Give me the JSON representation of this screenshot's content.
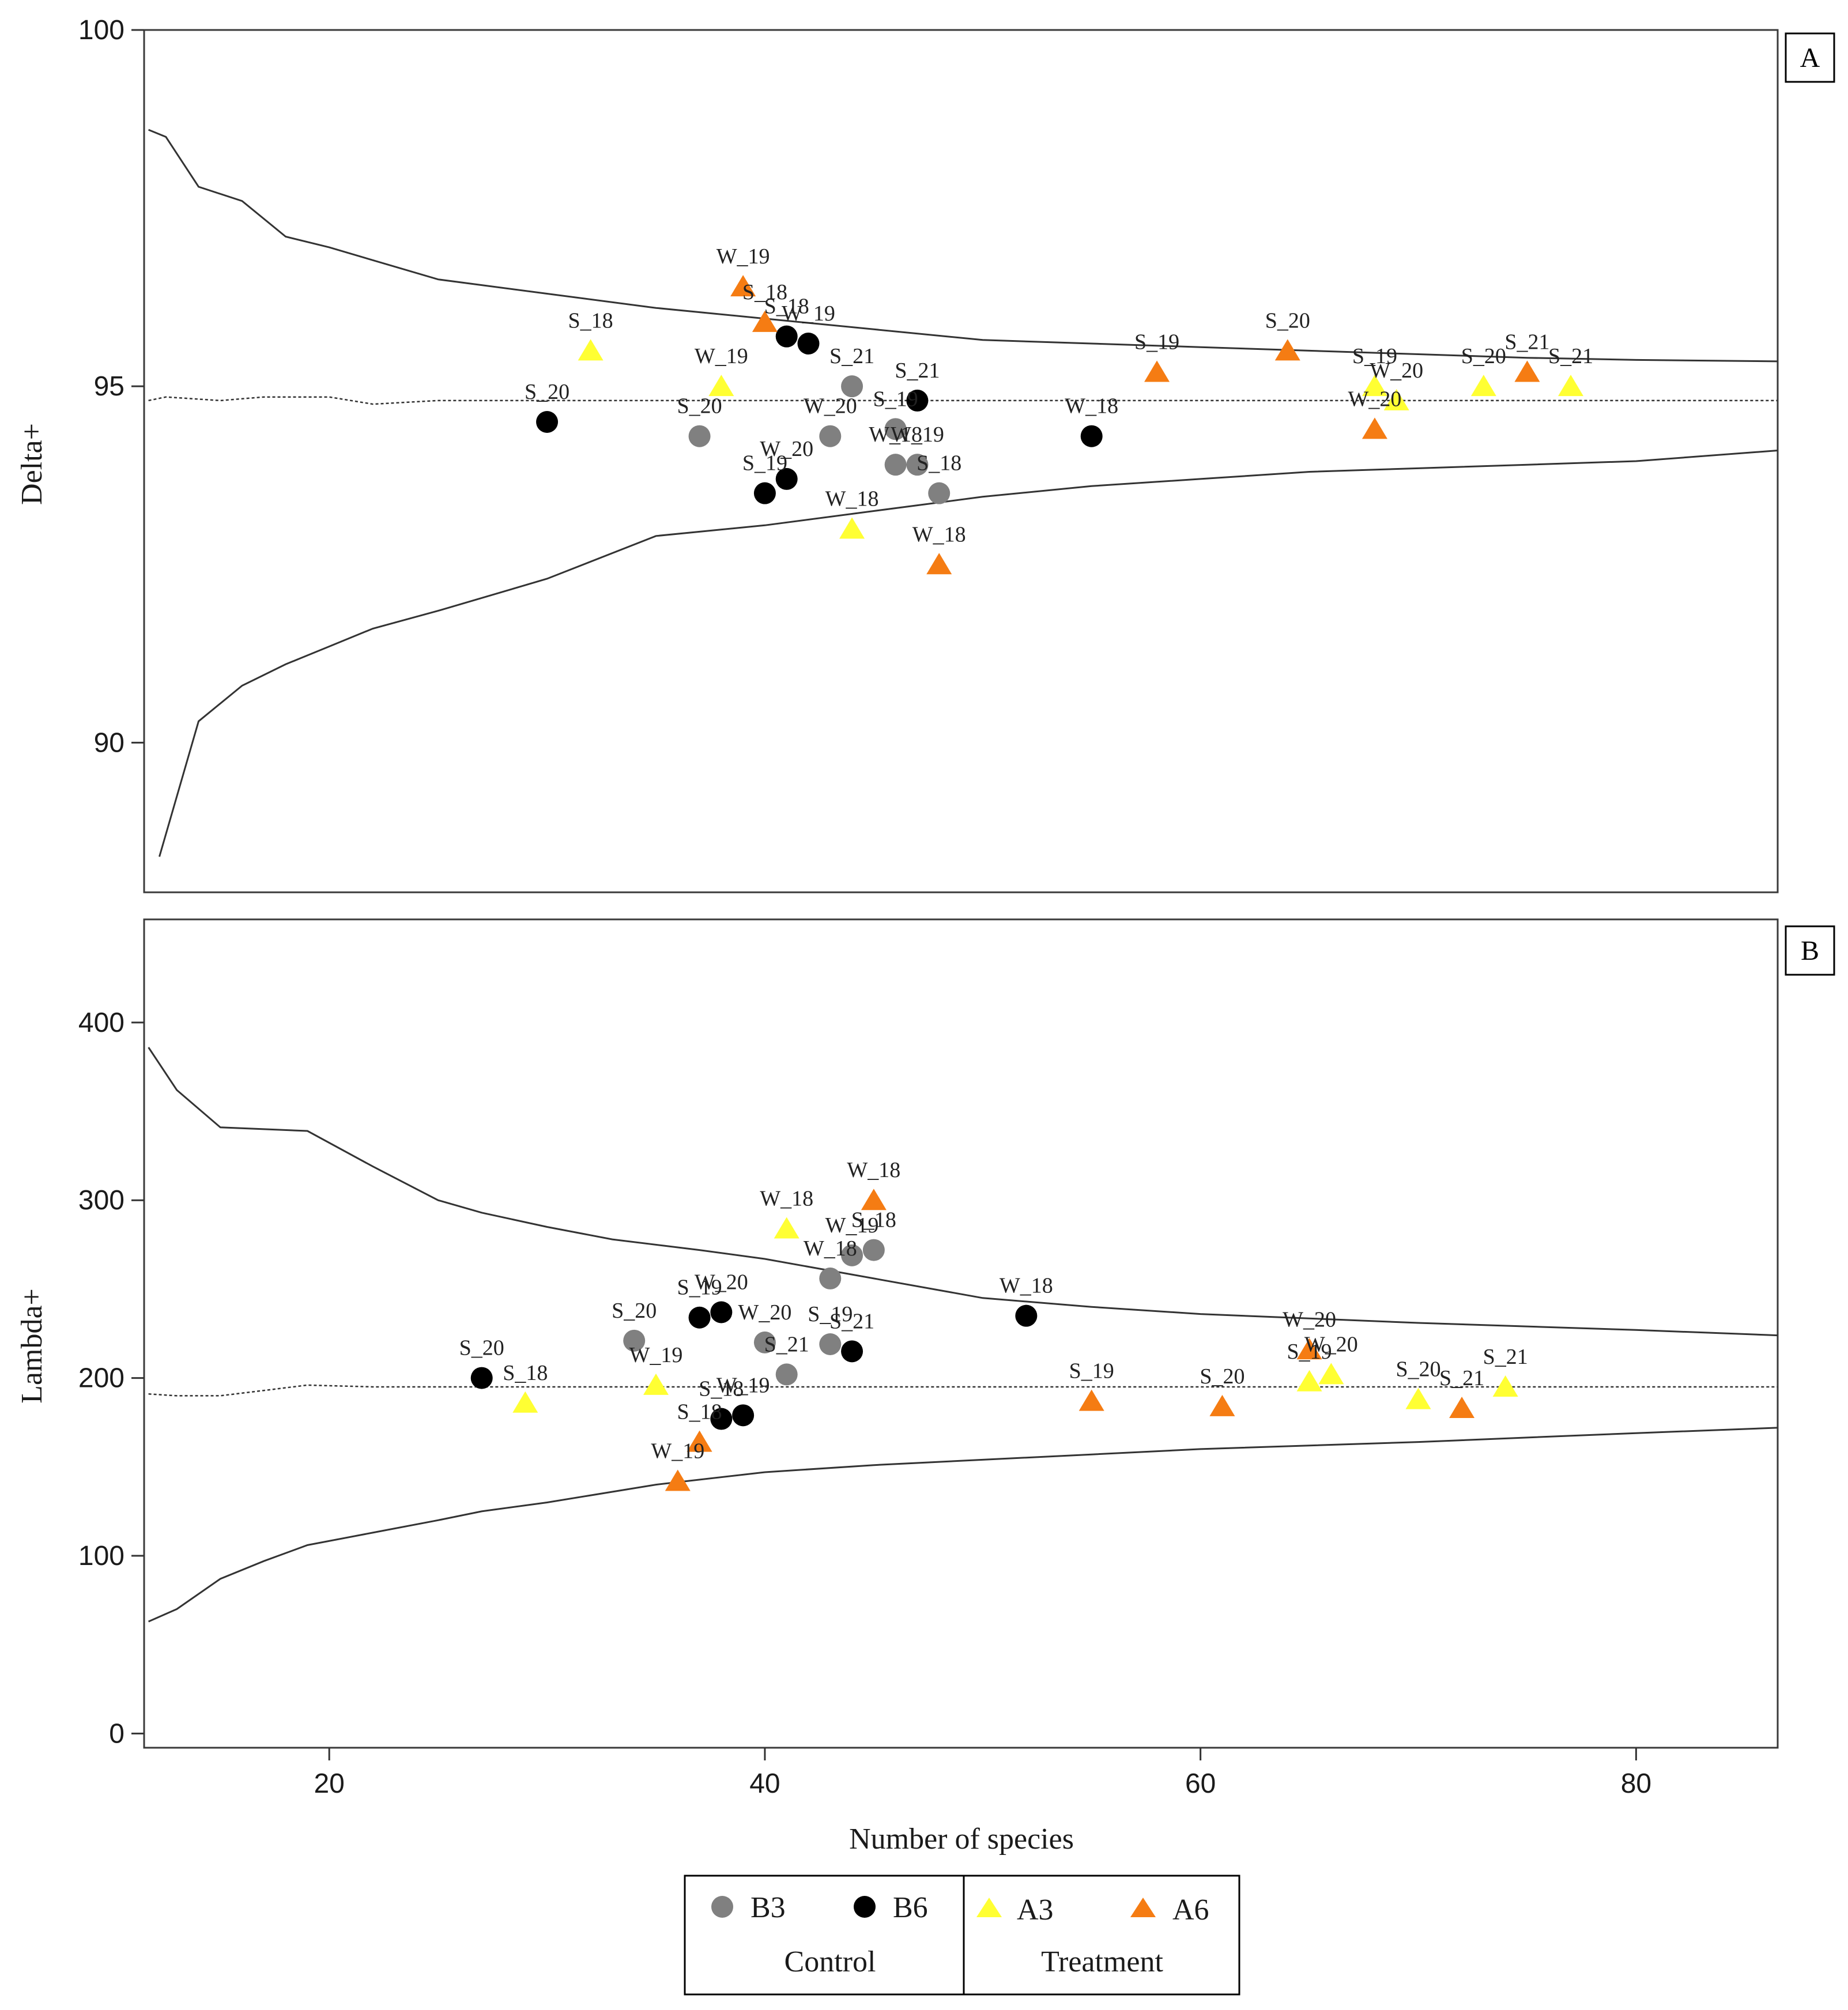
{
  "chart_data": [
    {
      "type": "scatter",
      "panel": "A",
      "ylabel": "Delta+",
      "xlabel": "",
      "xlim": [
        11.5,
        86.5
      ],
      "ylim": [
        87.9,
        100
      ],
      "yticks": [
        90,
        95,
        100
      ],
      "xticks": [],
      "funnel": {
        "upper": [
          [
            11.7,
            98.6
          ],
          [
            12.5,
            98.5
          ],
          [
            14,
            97.8
          ],
          [
            16,
            97.6
          ],
          [
            18,
            97.1
          ],
          [
            20,
            96.95
          ],
          [
            25,
            96.5
          ],
          [
            30,
            96.3
          ],
          [
            35,
            96.1
          ],
          [
            40,
            95.95
          ],
          [
            45,
            95.8
          ],
          [
            50,
            95.65
          ],
          [
            55,
            95.6
          ],
          [
            60,
            95.55
          ],
          [
            65,
            95.5
          ],
          [
            70,
            95.45
          ],
          [
            75,
            95.4
          ],
          [
            80,
            95.37
          ],
          [
            86.5,
            95.35
          ]
        ],
        "mean": [
          [
            11.7,
            94.8
          ],
          [
            12.5,
            94.85
          ],
          [
            15,
            94.8
          ],
          [
            17,
            94.85
          ],
          [
            20,
            94.85
          ],
          [
            22,
            94.75
          ],
          [
            25,
            94.8
          ],
          [
            86.5,
            94.8
          ]
        ],
        "lower": [
          [
            12.2,
            88.4
          ],
          [
            14,
            90.3
          ],
          [
            16,
            90.8
          ],
          [
            18,
            91.1
          ],
          [
            20,
            91.35
          ],
          [
            22,
            91.6
          ],
          [
            25,
            91.85
          ],
          [
            30,
            92.3
          ],
          [
            35,
            92.9
          ],
          [
            40,
            93.05
          ],
          [
            45,
            93.25
          ],
          [
            50,
            93.45
          ],
          [
            55,
            93.6
          ],
          [
            60,
            93.7
          ],
          [
            65,
            93.8
          ],
          [
            70,
            93.85
          ],
          [
            75,
            93.9
          ],
          [
            80,
            93.95
          ],
          [
            86.5,
            94.1
          ]
        ]
      },
      "series": [
        {
          "name": "B3",
          "marker": "circle",
          "color": "#808080",
          "points": [
            {
              "x": 37,
              "y": 94.3,
              "label": "S_20"
            },
            {
              "x": 44,
              "y": 95.0,
              "label": "S_21"
            },
            {
              "x": 43,
              "y": 94.3,
              "label": "W_20"
            },
            {
              "x": 46,
              "y": 94.4,
              "label": "S_19"
            },
            {
              "x": 46,
              "y": 93.9,
              "label": "W_18"
            },
            {
              "x": 47,
              "y": 93.9,
              "label": "W_19"
            },
            {
              "x": 48,
              "y": 93.5,
              "label": "S_18"
            }
          ]
        },
        {
          "name": "B6",
          "marker": "circle",
          "color": "#000000",
          "points": [
            {
              "x": 30,
              "y": 94.5,
              "label": "S_20"
            },
            {
              "x": 41,
              "y": 95.7,
              "label": "S_18"
            },
            {
              "x": 42,
              "y": 95.6,
              "label": "W_19"
            },
            {
              "x": 47,
              "y": 94.8,
              "label": "S_21"
            },
            {
              "x": 55,
              "y": 94.3,
              "label": "W_18"
            },
            {
              "x": 41,
              "y": 93.7,
              "label": "W_20"
            },
            {
              "x": 40,
              "y": 93.5,
              "label": "S_19"
            }
          ]
        },
        {
          "name": "A3",
          "marker": "triangle",
          "color": "#ffff33",
          "points": [
            {
              "x": 32,
              "y": 95.5,
              "label": "S_18"
            },
            {
              "x": 38,
              "y": 95.0,
              "label": "W_19"
            },
            {
              "x": 44,
              "y": 93.0,
              "label": "W_18"
            },
            {
              "x": 68,
              "y": 95.0,
              "label": "S_19"
            },
            {
              "x": 69,
              "y": 94.8,
              "label": "W_20"
            },
            {
              "x": 73,
              "y": 95.0,
              "label": "S_20"
            },
            {
              "x": 77,
              "y": 95.0,
              "label": "S_21"
            }
          ]
        },
        {
          "name": "A6",
          "marker": "triangle",
          "color": "#f57c13",
          "points": [
            {
              "x": 39,
              "y": 96.4,
              "label": "W_19"
            },
            {
              "x": 40,
              "y": 95.9,
              "label": "S_18"
            },
            {
              "x": 48,
              "y": 92.5,
              "label": "W_18"
            },
            {
              "x": 58,
              "y": 95.2,
              "label": "S_19"
            },
            {
              "x": 64,
              "y": 95.5,
              "label": "S_20"
            },
            {
              "x": 68,
              "y": 94.4,
              "label": "W_20"
            },
            {
              "x": 75,
              "y": 95.2,
              "label": "S_21"
            }
          ]
        }
      ]
    },
    {
      "type": "scatter",
      "panel": "B",
      "ylabel": "Lambda+",
      "xlabel": "Number of species",
      "xlim": [
        11.5,
        86.5
      ],
      "ylim": [
        -8,
        458
      ],
      "yticks": [
        0,
        100,
        200,
        300,
        400
      ],
      "xticks": [
        20,
        40,
        60,
        80
      ],
      "funnel": {
        "upper": [
          [
            11.7,
            386
          ],
          [
            13,
            362
          ],
          [
            15,
            341
          ],
          [
            17,
            340
          ],
          [
            19,
            339
          ],
          [
            22,
            319
          ],
          [
            25,
            300
          ],
          [
            27,
            293
          ],
          [
            30,
            285
          ],
          [
            33,
            278
          ],
          [
            37,
            272
          ],
          [
            40,
            267
          ],
          [
            45,
            256
          ],
          [
            50,
            245
          ],
          [
            55,
            240
          ],
          [
            60,
            236
          ],
          [
            70,
            231
          ],
          [
            80,
            227
          ],
          [
            86.5,
            224
          ]
        ],
        "mean": [
          [
            11.7,
            191
          ],
          [
            13,
            190
          ],
          [
            15,
            190
          ],
          [
            17,
            193
          ],
          [
            19,
            196
          ],
          [
            22,
            195
          ],
          [
            86.5,
            195
          ]
        ],
        "lower": [
          [
            11.7,
            63
          ],
          [
            13,
            70
          ],
          [
            15,
            87
          ],
          [
            17,
            97
          ],
          [
            19,
            106
          ],
          [
            22,
            113
          ],
          [
            25,
            120
          ],
          [
            27,
            125
          ],
          [
            30,
            130
          ],
          [
            35,
            140
          ],
          [
            40,
            147
          ],
          [
            45,
            151
          ],
          [
            50,
            154
          ],
          [
            55,
            157
          ],
          [
            60,
            160
          ],
          [
            70,
            164
          ],
          [
            80,
            169
          ],
          [
            86.5,
            172
          ]
        ]
      },
      "series": [
        {
          "name": "B3",
          "marker": "circle",
          "color": "#808080",
          "points": [
            {
              "x": 34,
              "y": 221,
              "label": "S_20"
            },
            {
              "x": 43,
              "y": 256,
              "label": "W_18"
            },
            {
              "x": 44,
              "y": 269,
              "label": "W_19"
            },
            {
              "x": 45,
              "y": 272,
              "label": "S_18"
            },
            {
              "x": 40,
              "y": 220,
              "label": "W_20"
            },
            {
              "x": 43,
              "y": 219,
              "label": "S_19"
            },
            {
              "x": 41,
              "y": 202,
              "label": "S_21"
            }
          ]
        },
        {
          "name": "B6",
          "marker": "circle",
          "color": "#000000",
          "points": [
            {
              "x": 27,
              "y": 200,
              "label": "S_20"
            },
            {
              "x": 37,
              "y": 234,
              "label": "S_19"
            },
            {
              "x": 38,
              "y": 237,
              "label": "W_20"
            },
            {
              "x": 44,
              "y": 215,
              "label": "S_21"
            },
            {
              "x": 52,
              "y": 235,
              "label": "W_18"
            },
            {
              "x": 38,
              "y": 177,
              "label": "S_18"
            },
            {
              "x": 39,
              "y": 179,
              "label": "W_19"
            }
          ]
        },
        {
          "name": "A3",
          "marker": "triangle",
          "color": "#ffff33",
          "points": [
            {
              "x": 29,
              "y": 186,
              "label": "S_18"
            },
            {
              "x": 35,
              "y": 196,
              "label": "W_19"
            },
            {
              "x": 41,
              "y": 284,
              "label": "W_18"
            },
            {
              "x": 65,
              "y": 198,
              "label": "S_19"
            },
            {
              "x": 66,
              "y": 202,
              "label": "W_20"
            },
            {
              "x": 70,
              "y": 188,
              "label": "S_20"
            },
            {
              "x": 74,
              "y": 195,
              "label": "S_21"
            }
          ]
        },
        {
          "name": "A6",
          "marker": "triangle",
          "color": "#f57c13",
          "points": [
            {
              "x": 45,
              "y": 300,
              "label": "W_18"
            },
            {
              "x": 36,
              "y": 142,
              "label": "W_19"
            },
            {
              "x": 37,
              "y": 164,
              "label": "S_18"
            },
            {
              "x": 55,
              "y": 187,
              "label": "S_19"
            },
            {
              "x": 61,
              "y": 184,
              "label": "S_20"
            },
            {
              "x": 65,
              "y": 216,
              "label": "W_20"
            },
            {
              "x": 72,
              "y": 183,
              "label": "S_21"
            }
          ]
        }
      ]
    }
  ],
  "legend": {
    "items": [
      {
        "name": "B3",
        "marker": "circle",
        "color": "#808080"
      },
      {
        "name": "B6",
        "marker": "circle",
        "color": "#000000"
      },
      {
        "name": "A3",
        "marker": "triangle",
        "color": "#ffff33"
      },
      {
        "name": "A6",
        "marker": "triangle",
        "color": "#f57c13"
      }
    ],
    "groups": [
      "Control",
      "Treatment"
    ]
  }
}
